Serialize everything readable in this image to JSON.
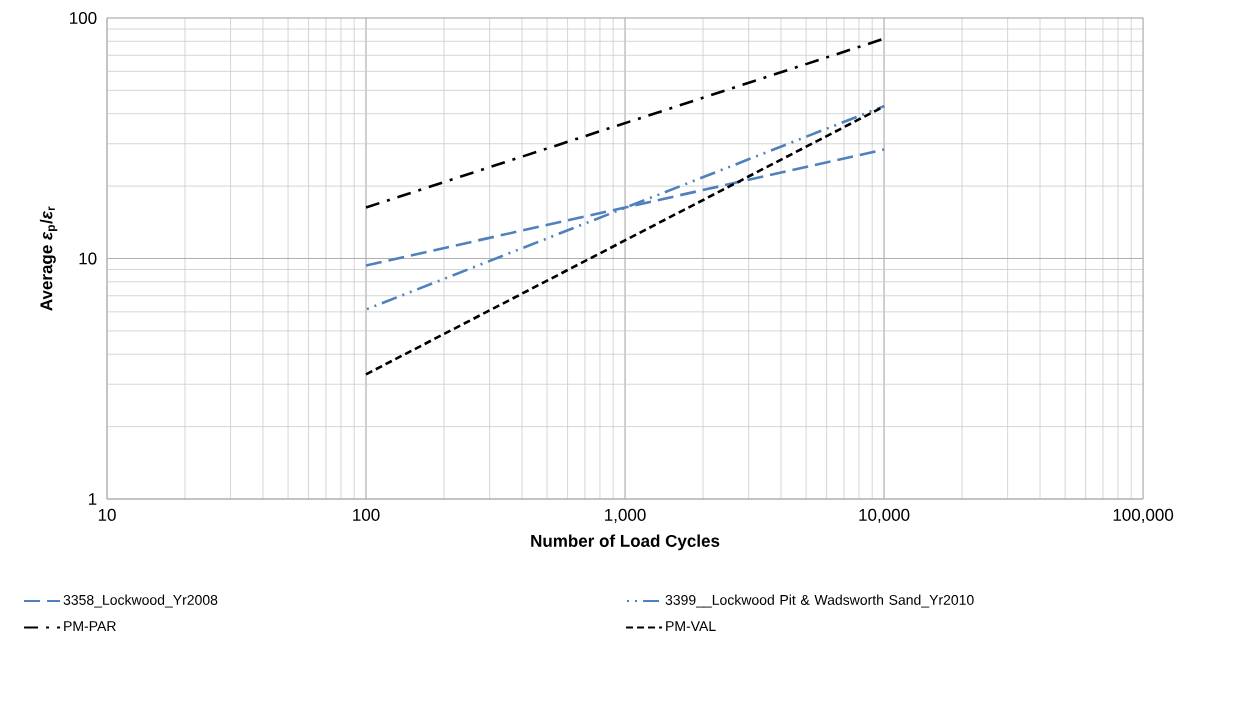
{
  "chart_data": {
    "type": "line",
    "xlabel": "Number of Load Cycles",
    "ylabel": "Average *ε*$_{p}$/*ε*$_{r}$",
    "log": "xy",
    "grid": true,
    "legend": "bottom",
    "marker": "none",
    "x": [
      100,
      10000
    ],
    "xlim": [
      10,
      100000
    ],
    "xticks": [
      10,
      100,
      {
        "value": 1000,
        "label": "1,000"
      },
      {
        "value": 10000,
        "label": "10,000"
      },
      {
        "value": 100000,
        "label": "100,000"
      }
    ],
    "ylim": [
      1,
      100
    ],
    "yticks": [
      1,
      10,
      100
    ],
    "series": [
      {
        "name": "3358_Lockwood_Yr2008",
        "color": "#4f81bd",
        "line_style": "long dash",
        "values": [
          9.35,
          28.4
        ]
      },
      {
        "name": "3399__Lockwood Pit & Wadsworth Sand_Yr2010",
        "color": "#4f81bd",
        "line_style": "dash dot dot",
        "values": [
          6.14,
          43
        ]
      },
      {
        "name": "PM-PAR",
        "color": "#000000",
        "line_style": "dash dot",
        "values": [
          16.3,
          82
        ]
      },
      {
        "name": "PM-VAL",
        "color": "#000000",
        "line_style": "dashed",
        "values": [
          3.3,
          42.9
        ]
      }
    ]
  }
}
